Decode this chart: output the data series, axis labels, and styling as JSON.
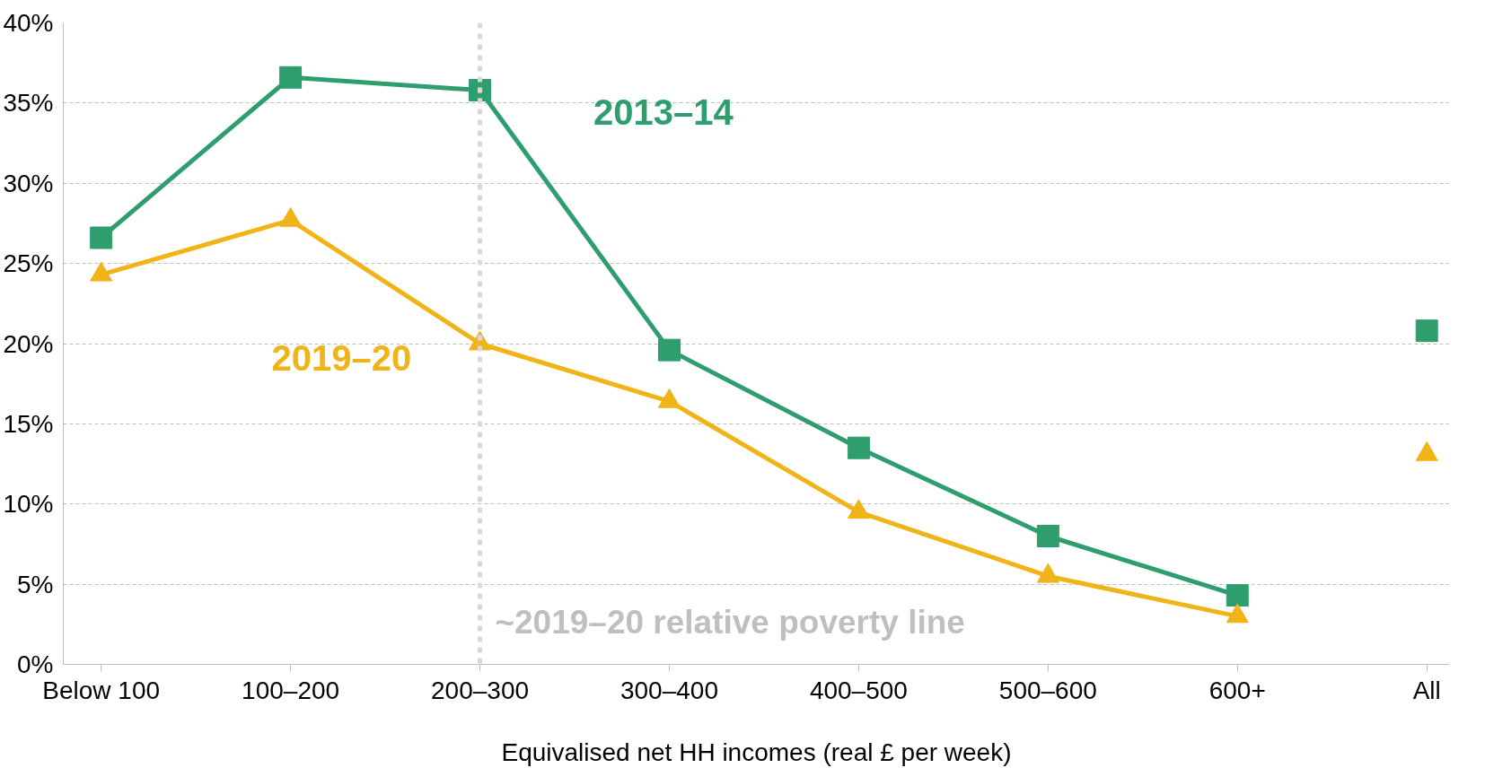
{
  "chart_data": {
    "type": "line",
    "xlabel": "Equivalised net HH incomes (real £ per week)",
    "categories": [
      "Below 100",
      "100–200",
      "200–300",
      "300–400",
      "400–500",
      "500–600",
      "600+",
      "All"
    ],
    "series": [
      {
        "name": "2013–14",
        "color": "#2e9e6e",
        "marker": "square",
        "values": [
          26.6,
          36.6,
          35.8,
          19.6,
          13.5,
          8.0,
          4.3,
          null
        ]
      },
      {
        "name": "2019–20",
        "color": "#f0b419",
        "marker": "triangle",
        "values": [
          24.3,
          27.7,
          20.0,
          16.4,
          9.5,
          5.5,
          3.0,
          null
        ]
      },
      {
        "type": "scatter",
        "color": "#2e9e6e",
        "marker": "square",
        "values": [
          null,
          null,
          null,
          null,
          null,
          null,
          null,
          20.8
        ]
      },
      {
        "type": "scatter",
        "color": "#f0b419",
        "marker": "triangle",
        "values": [
          null,
          null,
          null,
          null,
          null,
          null,
          null,
          13.1
        ]
      }
    ],
    "ylim": [
      0,
      40
    ],
    "yticks": [
      {
        "value": 0,
        "label": "0%"
      },
      {
        "value": 5,
        "label": "5%"
      },
      {
        "value": 10,
        "label": "10%"
      },
      {
        "value": 15,
        "label": "15%"
      },
      {
        "value": 20,
        "label": "20%"
      },
      {
        "value": 25,
        "label": "25%"
      },
      {
        "value": 30,
        "label": "30%"
      },
      {
        "value": 35,
        "label": "35%"
      },
      {
        "value": 40,
        "label": "40%"
      }
    ],
    "ref_lines": [
      {
        "axis": "x",
        "value": "200–300",
        "label": "~2019–20 relative poverty line",
        "color": "#d9d9d9",
        "line_style": "dashed"
      }
    ],
    "grid": "y",
    "line_style": "solid"
  }
}
